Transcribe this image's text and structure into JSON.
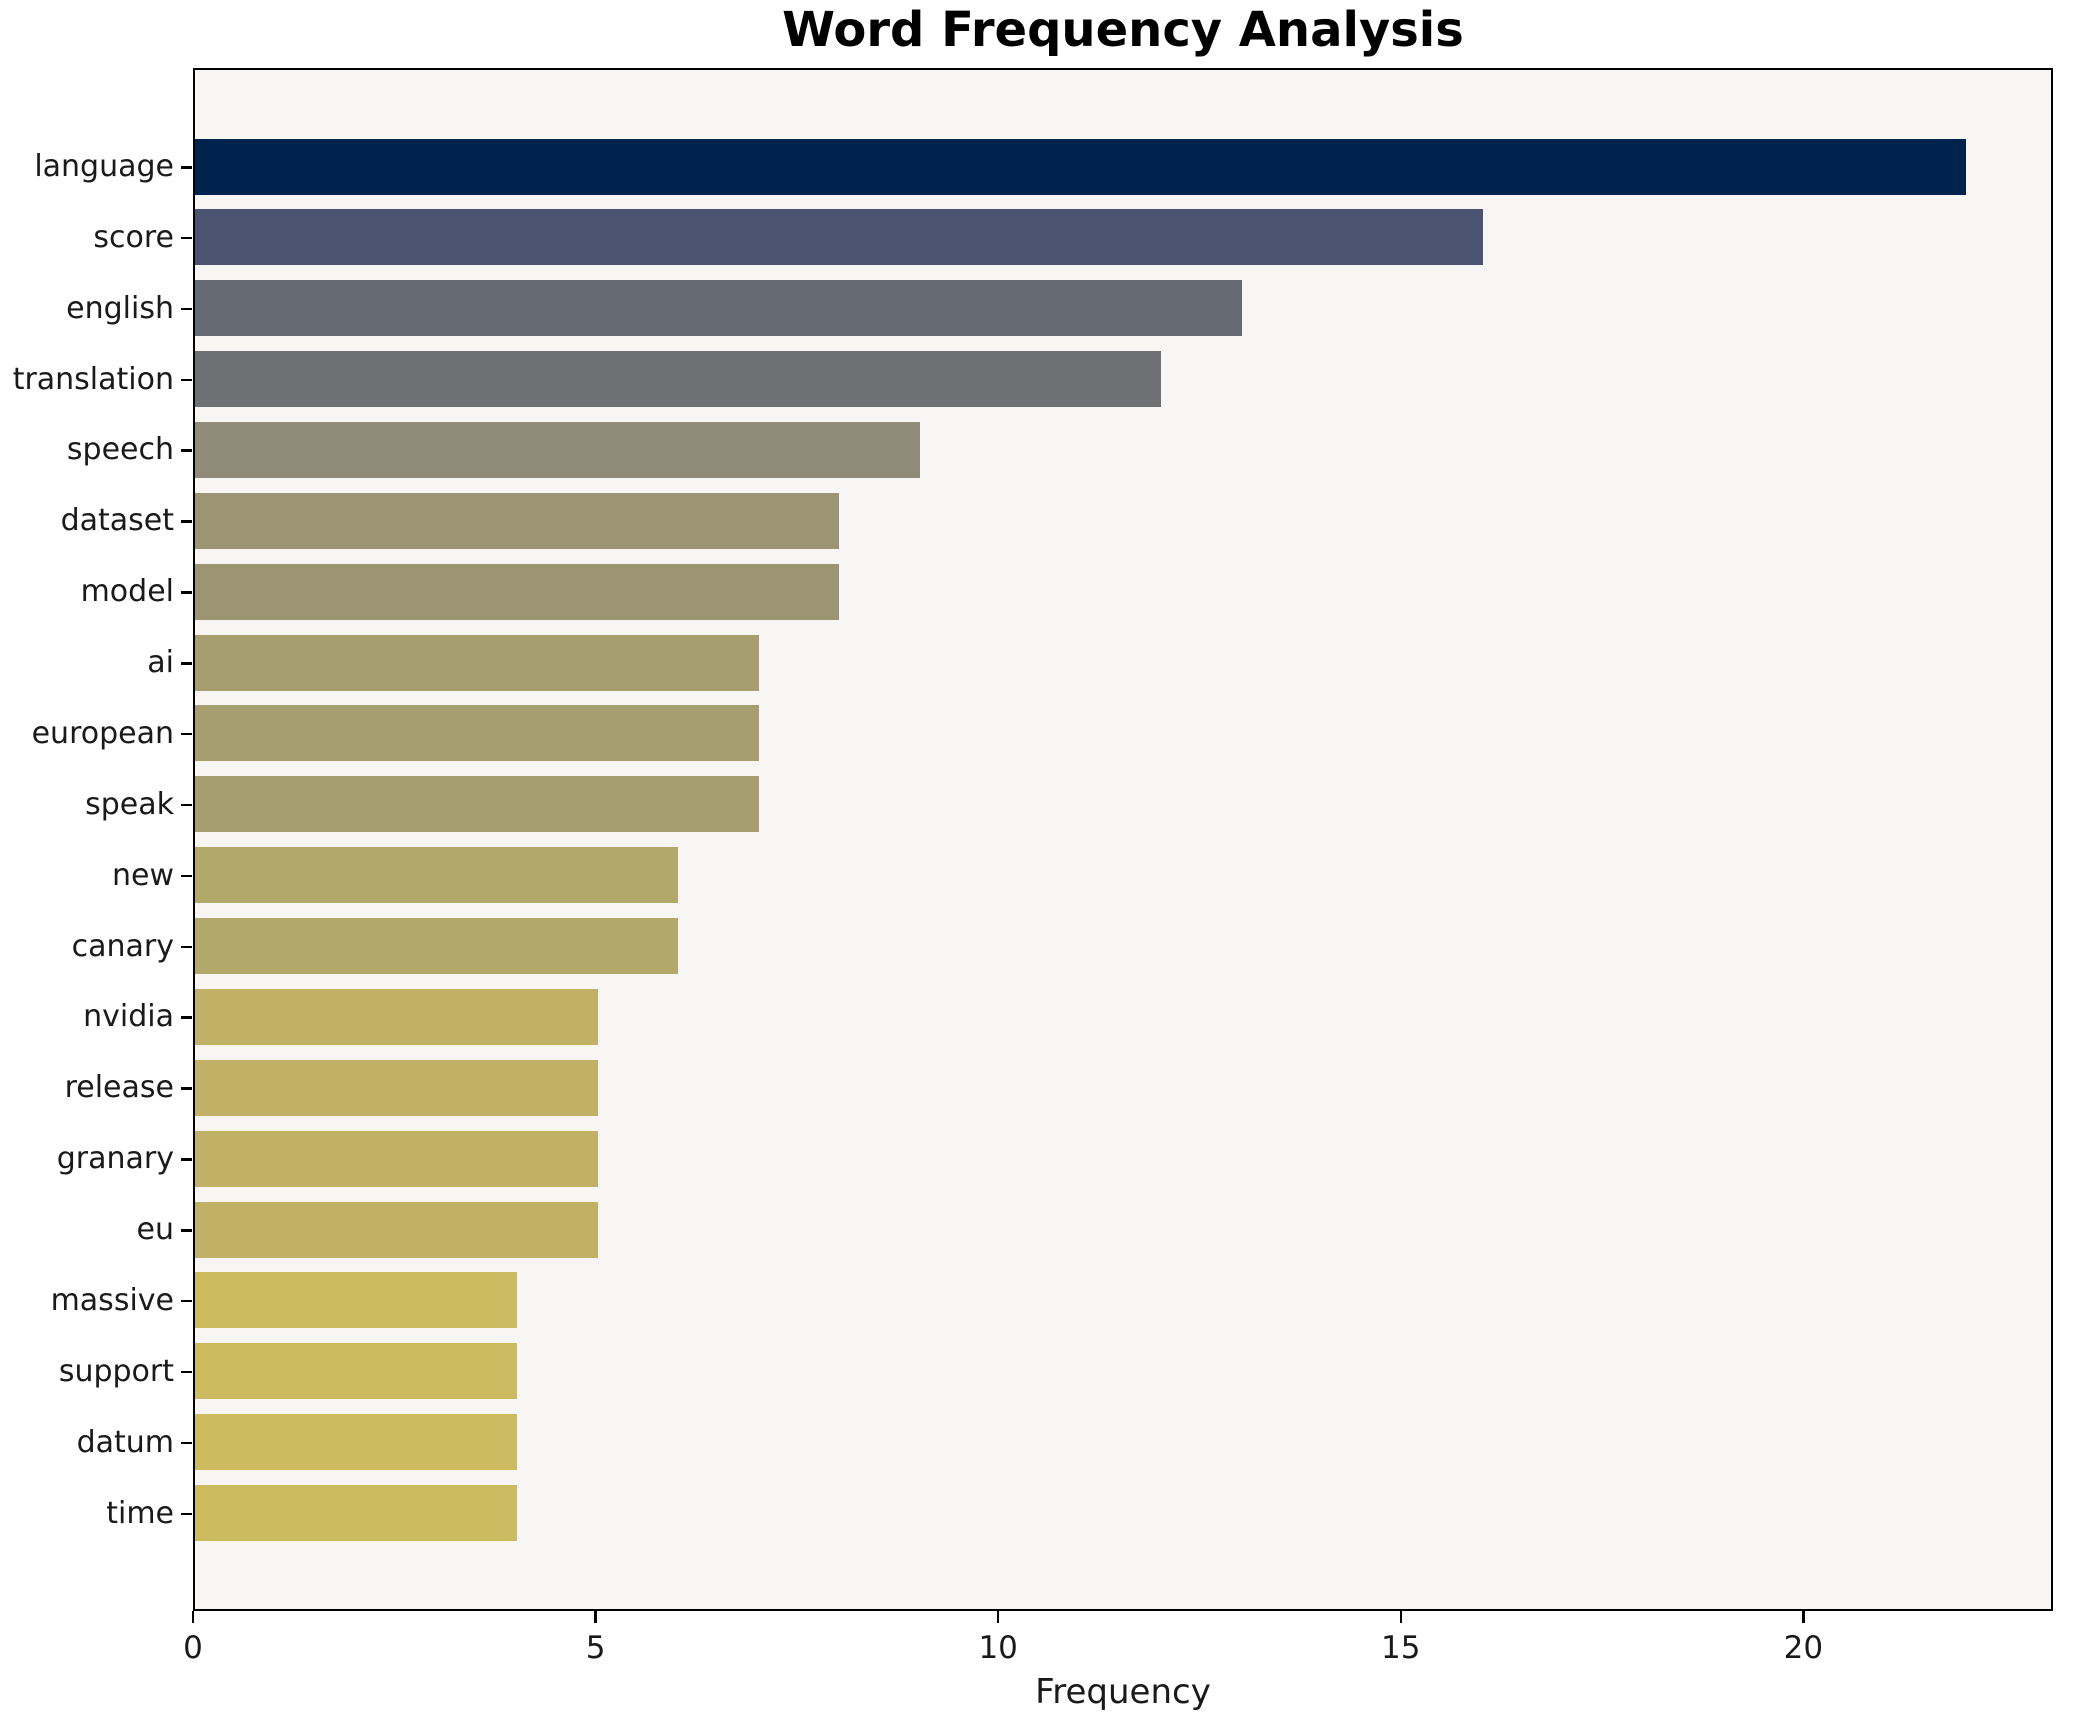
{
  "page": {
    "background": "#ffffff",
    "plot_background": "#f7f6f5",
    "spine_color": "#000000",
    "text_color": "#1a1a1a"
  },
  "chart_data": {
    "type": "bar",
    "orientation": "horizontal",
    "title": "Word Frequency Analysis",
    "xlabel": "Frequency",
    "ylabel": "",
    "grid": false,
    "legend": "none",
    "xlim": [
      0,
      23.1
    ],
    "xticks": [
      0,
      5,
      10,
      15,
      20
    ],
    "categories": [
      "language",
      "score",
      "english",
      "translation",
      "speech",
      "dataset",
      "model",
      "ai",
      "european",
      "speak",
      "new",
      "canary",
      "nvidia",
      "release",
      "granary",
      "eu",
      "massive",
      "support",
      "datum",
      "time"
    ],
    "values": [
      22,
      16,
      13,
      12,
      9,
      8,
      8,
      7,
      7,
      7,
      6,
      6,
      5,
      5,
      5,
      5,
      4,
      4,
      4,
      4
    ],
    "bar_colors": [
      "#00234d",
      "#4a5470",
      "#666a72",
      "#6e7073",
      "#8f8b78",
      "#9b9574",
      "#9b9574",
      "#a79e6f",
      "#a79e6f",
      "#a79e6f",
      "#b2a869",
      "#b2a869",
      "#c0b166",
      "#c0b166",
      "#c0b166",
      "#c0b166",
      "#ccbb61",
      "#ccbb61",
      "#ccbb61",
      "#ccbb61"
    ]
  }
}
